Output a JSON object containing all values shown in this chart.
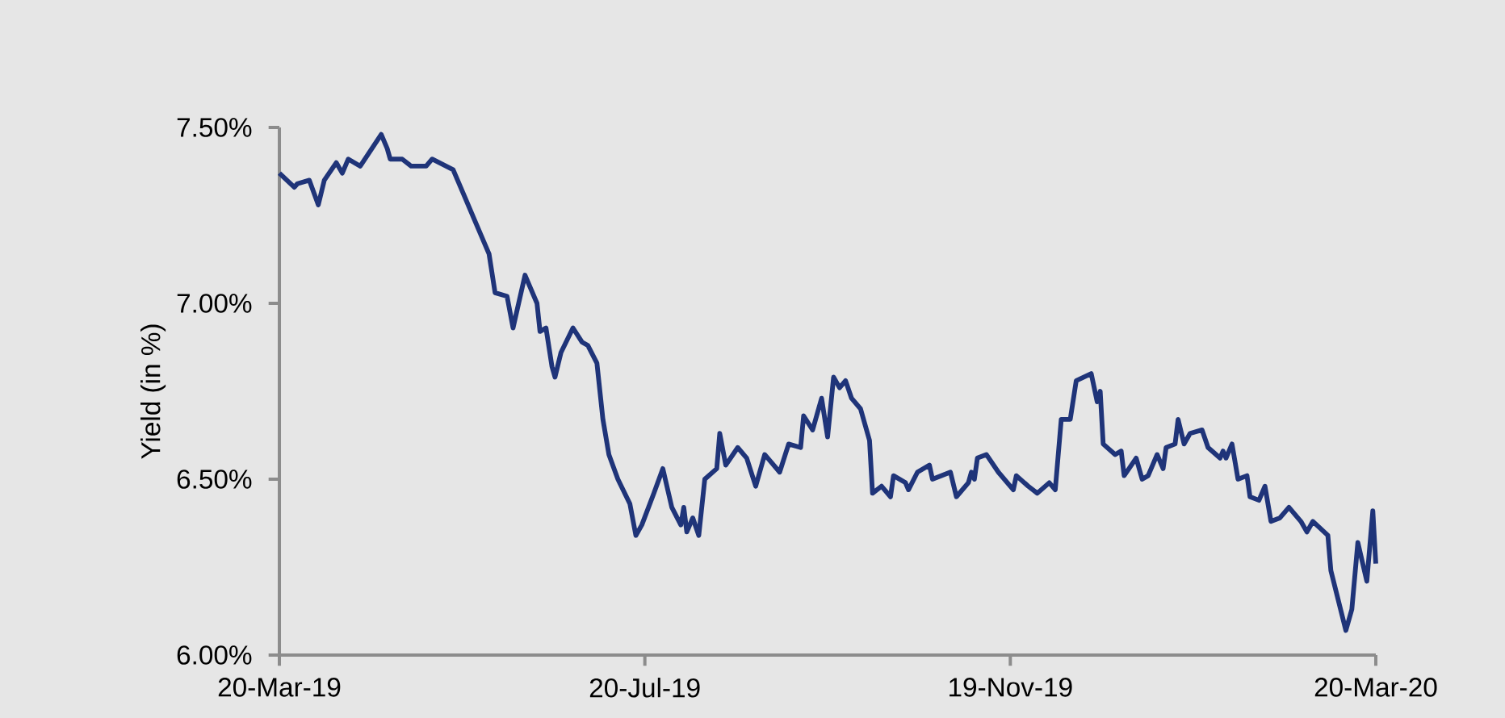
{
  "chart_data": {
    "type": "line",
    "ylabel": "Yield (in %)",
    "xlim": [
      "2019-03-20",
      "2020-03-20"
    ],
    "ylim": [
      6.0,
      7.5
    ],
    "xticks": [
      {
        "value": "2019-03-20",
        "label": "20-Mar-19"
      },
      {
        "value": "2019-07-20",
        "label": "20-Jul-19"
      },
      {
        "value": "2019-11-19",
        "label": "19-Nov-19"
      },
      {
        "value": "2020-03-20",
        "label": "20-Mar-20"
      }
    ],
    "yticks": [
      {
        "value": 6.0,
        "label": "6.00%"
      },
      {
        "value": 6.5,
        "label": "6.50%"
      },
      {
        "value": 7.0,
        "label": "7.00%"
      },
      {
        "value": 7.5,
        "label": "7.50%"
      }
    ],
    "grid": false,
    "legend": false,
    "marker": "none",
    "line_style": "solid",
    "series": [
      {
        "color": "#1f3479",
        "x": [
          "2019-03-20",
          "2019-03-25",
          "2019-03-26",
          "2019-03-30",
          "2019-04-02",
          "2019-04-04",
          "2019-04-08",
          "2019-04-10",
          "2019-04-12",
          "2019-04-16",
          "2019-04-23",
          "2019-04-25",
          "2019-04-26",
          "2019-04-30",
          "2019-05-03",
          "2019-05-08",
          "2019-05-10",
          "2019-05-17",
          "2019-05-21",
          "2019-05-24",
          "2019-05-29",
          "2019-05-31",
          "2019-06-04",
          "2019-06-06",
          "2019-06-10",
          "2019-06-14",
          "2019-06-15",
          "2019-06-17",
          "2019-06-19",
          "2019-06-20",
          "2019-06-22",
          "2019-06-26",
          "2019-06-29",
          "2019-07-01",
          "2019-07-04",
          "2019-07-06",
          "2019-07-08",
          "2019-07-11",
          "2019-07-15",
          "2019-07-17",
          "2019-07-19",
          "2019-07-23",
          "2019-07-26",
          "2019-07-29",
          "2019-08-01",
          "2019-08-02",
          "2019-08-03",
          "2019-08-05",
          "2019-08-07",
          "2019-08-09",
          "2019-08-13",
          "2019-08-14",
          "2019-08-16",
          "2019-08-20",
          "2019-08-23",
          "2019-08-26",
          "2019-08-29",
          "2019-08-31",
          "2019-09-03",
          "2019-09-06",
          "2019-09-10",
          "2019-09-11",
          "2019-09-14",
          "2019-09-17",
          "2019-09-19",
          "2019-09-21",
          "2019-09-23",
          "2019-09-25",
          "2019-09-27",
          "2019-09-30",
          "2019-10-03",
          "2019-10-04",
          "2019-10-07",
          "2019-10-10",
          "2019-10-11",
          "2019-10-15",
          "2019-10-16",
          "2019-10-19",
          "2019-10-23",
          "2019-10-24",
          "2019-10-30",
          "2019-11-01",
          "2019-11-05",
          "2019-11-06",
          "2019-11-07",
          "2019-11-08",
          "2019-11-11",
          "2019-11-15",
          "2019-11-20",
          "2019-11-21",
          "2019-11-25",
          "2019-11-28",
          "2019-12-02",
          "2019-12-04",
          "2019-12-06",
          "2019-12-09",
          "2019-12-11",
          "2019-12-16",
          "2019-12-18",
          "2019-12-19",
          "2019-12-20",
          "2019-12-24",
          "2019-12-26",
          "2019-12-27",
          "2019-12-31",
          "2020-01-02",
          "2020-01-04",
          "2020-01-07",
          "2020-01-09",
          "2020-01-10",
          "2020-01-13",
          "2020-01-14",
          "2020-01-16",
          "2020-01-18",
          "2020-01-22",
          "2020-01-24",
          "2020-01-28",
          "2020-01-29",
          "2020-01-30",
          "2020-02-01",
          "2020-02-03",
          "2020-02-06",
          "2020-02-07",
          "2020-02-10",
          "2020-02-12",
          "2020-02-14",
          "2020-02-17",
          "2020-02-20",
          "2020-02-24",
          "2020-02-26",
          "2020-02-28",
          "2020-03-04",
          "2020-03-05",
          "2020-03-10",
          "2020-03-12",
          "2020-03-14",
          "2020-03-17",
          "2020-03-19",
          "2020-03-20"
        ],
        "values": [
          7.37,
          7.33,
          7.34,
          7.35,
          7.28,
          7.35,
          7.4,
          7.37,
          7.41,
          7.39,
          7.48,
          7.44,
          7.41,
          7.41,
          7.39,
          7.39,
          7.41,
          7.38,
          7.3,
          7.24,
          7.14,
          7.03,
          7.02,
          6.93,
          7.08,
          7.0,
          6.92,
          6.93,
          6.82,
          6.79,
          6.86,
          6.93,
          6.89,
          6.88,
          6.83,
          6.67,
          6.57,
          6.5,
          6.43,
          6.34,
          6.37,
          6.46,
          6.53,
          6.42,
          6.37,
          6.42,
          6.35,
          6.39,
          6.34,
          6.5,
          6.53,
          6.63,
          6.54,
          6.59,
          6.56,
          6.48,
          6.57,
          6.55,
          6.52,
          6.6,
          6.59,
          6.68,
          6.64,
          6.73,
          6.62,
          6.79,
          6.76,
          6.78,
          6.73,
          6.7,
          6.61,
          6.46,
          6.48,
          6.45,
          6.51,
          6.49,
          6.47,
          6.52,
          6.54,
          6.5,
          6.52,
          6.45,
          6.49,
          6.52,
          6.5,
          6.56,
          6.57,
          6.52,
          6.47,
          6.51,
          6.48,
          6.46,
          6.49,
          6.47,
          6.67,
          6.67,
          6.78,
          6.8,
          6.72,
          6.75,
          6.6,
          6.57,
          6.58,
          6.51,
          6.56,
          6.5,
          6.51,
          6.57,
          6.53,
          6.59,
          6.6,
          6.67,
          6.6,
          6.63,
          6.64,
          6.59,
          6.56,
          6.58,
          6.56,
          6.6,
          6.5,
          6.51,
          6.45,
          6.44,
          6.48,
          6.38,
          6.39,
          6.42,
          6.38,
          6.35,
          6.38,
          6.34,
          6.24,
          6.07,
          6.13,
          6.32,
          6.21,
          6.41,
          6.26
        ]
      }
    ]
  }
}
